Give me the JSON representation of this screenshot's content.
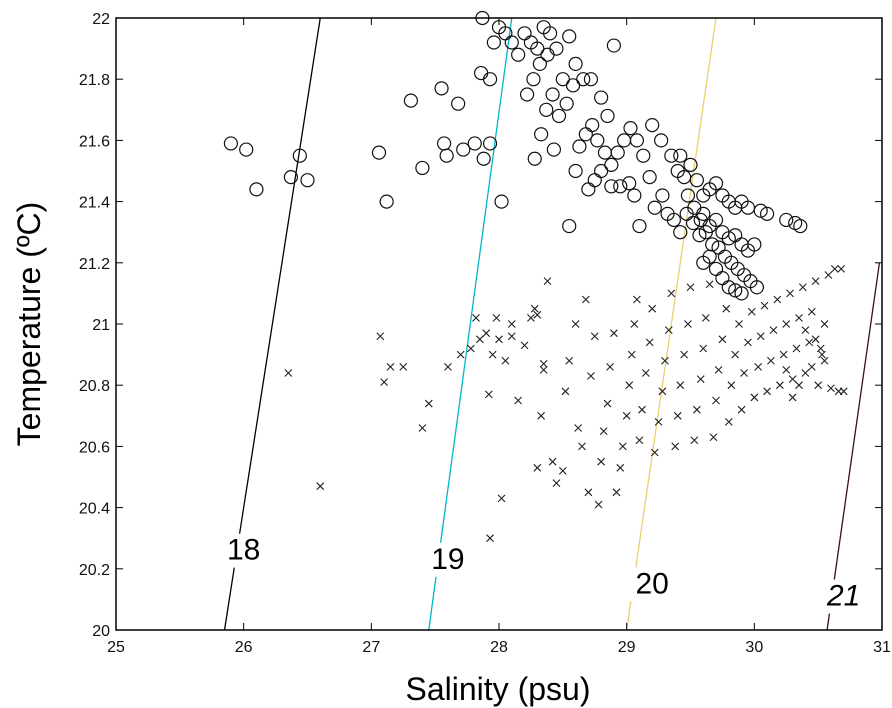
{
  "chart_data": {
    "type": "scatter",
    "xlabel": "Salinity (psu)",
    "ylabel": "Temperature (ºC)",
    "xlim": [
      25,
      31
    ],
    "ylim": [
      20,
      22
    ],
    "xticks": [
      25,
      26,
      27,
      28,
      29,
      30,
      31
    ],
    "yticks": [
      20,
      20.2,
      20.4,
      20.6,
      20.8,
      21,
      21.2,
      21.4,
      21.6,
      21.8,
      22
    ],
    "ytick_labels": [
      "20",
      "20.2",
      "20.4",
      "20.6",
      "20.8",
      "21",
      "21.2",
      "21.4",
      "21.6",
      "21.8",
      "22"
    ],
    "grid": false,
    "isopycnals": [
      {
        "label": "18",
        "color": "#000000",
        "points": [
          [
            25.85,
            20
          ],
          [
            26.6,
            22
          ]
        ],
        "label_at": [
          26.0,
          20.23
        ]
      },
      {
        "label": "19",
        "color": "#00b8c8",
        "points": [
          [
            27.45,
            20
          ],
          [
            28.1,
            22
          ]
        ],
        "label_at": [
          27.6,
          20.2
        ]
      },
      {
        "label": "20",
        "color": "#e8d070",
        "points": [
          [
            29.0,
            20
          ],
          [
            29.7,
            22
          ]
        ],
        "label_at": [
          29.2,
          20.12
        ]
      },
      {
        "label": "21",
        "color": "#3a1020",
        "points": [
          [
            30.57,
            20
          ],
          [
            30.98,
            21.2
          ]
        ],
        "label_at": [
          30.7,
          20.08
        ]
      }
    ],
    "series": [
      {
        "marker": "circle",
        "points": [
          [
            25.9,
            21.59
          ],
          [
            26.02,
            21.57
          ],
          [
            26.1,
            21.44
          ],
          [
            26.37,
            21.48
          ],
          [
            26.44,
            21.55
          ],
          [
            26.5,
            21.47
          ],
          [
            27.06,
            21.56
          ],
          [
            27.12,
            21.4
          ],
          [
            27.31,
            21.73
          ],
          [
            27.4,
            21.51
          ],
          [
            27.55,
            21.77
          ],
          [
            27.57,
            21.59
          ],
          [
            27.59,
            21.55
          ],
          [
            27.68,
            21.72
          ],
          [
            27.72,
            21.57
          ],
          [
            27.81,
            21.59
          ],
          [
            27.86,
            21.82
          ],
          [
            27.88,
            21.54
          ],
          [
            27.93,
            21.59
          ],
          [
            27.93,
            21.8
          ],
          [
            27.87,
            22.0
          ],
          [
            28.0,
            21.97
          ],
          [
            28.05,
            21.95
          ],
          [
            28.02,
            21.4
          ],
          [
            27.96,
            21.92
          ],
          [
            28.1,
            21.92
          ],
          [
            28.15,
            21.88
          ],
          [
            28.2,
            21.95
          ],
          [
            28.25,
            21.92
          ],
          [
            28.3,
            21.9
          ],
          [
            28.35,
            21.97
          ],
          [
            28.4,
            21.95
          ],
          [
            28.22,
            21.75
          ],
          [
            28.27,
            21.8
          ],
          [
            28.32,
            21.85
          ],
          [
            28.38,
            21.88
          ],
          [
            28.45,
            21.9
          ],
          [
            28.55,
            21.94
          ],
          [
            28.6,
            21.85
          ],
          [
            28.5,
            21.8
          ],
          [
            28.42,
            21.75
          ],
          [
            28.37,
            21.7
          ],
          [
            28.28,
            21.54
          ],
          [
            28.33,
            21.62
          ],
          [
            28.43,
            21.57
          ],
          [
            28.47,
            21.68
          ],
          [
            28.53,
            21.72
          ],
          [
            28.58,
            21.78
          ],
          [
            28.66,
            21.8
          ],
          [
            28.72,
            21.8
          ],
          [
            28.8,
            21.74
          ],
          [
            28.85,
            21.68
          ],
          [
            28.9,
            21.91
          ],
          [
            28.55,
            21.32
          ],
          [
            28.6,
            21.5
          ],
          [
            28.63,
            21.58
          ],
          [
            28.68,
            21.62
          ],
          [
            28.73,
            21.65
          ],
          [
            28.77,
            21.6
          ],
          [
            28.83,
            21.56
          ],
          [
            28.88,
            21.52
          ],
          [
            28.93,
            21.56
          ],
          [
            28.98,
            21.6
          ],
          [
            29.03,
            21.64
          ],
          [
            29.08,
            21.6
          ],
          [
            29.13,
            21.55
          ],
          [
            29.2,
            21.65
          ],
          [
            29.27,
            21.6
          ],
          [
            29.35,
            21.55
          ],
          [
            29.4,
            21.5
          ],
          [
            29.45,
            21.48
          ],
          [
            29.5,
            21.52
          ],
          [
            29.55,
            21.47
          ],
          [
            29.6,
            21.42
          ],
          [
            29.65,
            21.44
          ],
          [
            29.7,
            21.46
          ],
          [
            29.75,
            21.42
          ],
          [
            29.8,
            21.4
          ],
          [
            29.85,
            21.38
          ],
          [
            29.9,
            21.4
          ],
          [
            29.95,
            21.38
          ],
          [
            30.05,
            21.37
          ],
          [
            30.1,
            21.36
          ],
          [
            30.25,
            21.34
          ],
          [
            30.32,
            21.33
          ],
          [
            30.36,
            21.32
          ],
          [
            28.7,
            21.44
          ],
          [
            28.75,
            21.47
          ],
          [
            28.8,
            21.5
          ],
          [
            28.88,
            21.45
          ],
          [
            28.95,
            21.45
          ],
          [
            29.02,
            21.46
          ],
          [
            29.06,
            21.42
          ],
          [
            29.1,
            21.32
          ],
          [
            29.18,
            21.48
          ],
          [
            29.22,
            21.38
          ],
          [
            29.28,
            21.42
          ],
          [
            29.32,
            21.36
          ],
          [
            29.37,
            21.34
          ],
          [
            29.42,
            21.3
          ],
          [
            29.47,
            21.36
          ],
          [
            29.52,
            21.33
          ],
          [
            29.57,
            21.29
          ],
          [
            29.62,
            21.3
          ],
          [
            29.67,
            21.26
          ],
          [
            29.72,
            21.25
          ],
          [
            29.77,
            21.22
          ],
          [
            29.82,
            21.2
          ],
          [
            29.87,
            21.18
          ],
          [
            29.92,
            21.16
          ],
          [
            29.97,
            21.14
          ],
          [
            30.02,
            21.12
          ],
          [
            29.6,
            21.36
          ],
          [
            29.65,
            21.32
          ],
          [
            29.7,
            21.34
          ],
          [
            29.75,
            21.3
          ],
          [
            29.8,
            21.28
          ],
          [
            29.85,
            21.29
          ],
          [
            29.9,
            21.26
          ],
          [
            29.95,
            21.24
          ],
          [
            30.0,
            21.26
          ],
          [
            29.6,
            21.2
          ],
          [
            29.65,
            21.22
          ],
          [
            29.7,
            21.18
          ],
          [
            29.75,
            21.15
          ],
          [
            29.8,
            21.12
          ],
          [
            29.85,
            21.11
          ],
          [
            29.9,
            21.1
          ],
          [
            29.42,
            21.55
          ],
          [
            29.48,
            21.42
          ],
          [
            29.53,
            21.38
          ],
          [
            29.58,
            21.34
          ]
        ]
      },
      {
        "marker": "cross",
        "points": [
          [
            26.35,
            20.84
          ],
          [
            26.6,
            20.47
          ],
          [
            27.07,
            20.96
          ],
          [
            27.1,
            20.81
          ],
          [
            27.15,
            20.86
          ],
          [
            27.25,
            20.86
          ],
          [
            27.4,
            20.66
          ],
          [
            27.45,
            20.74
          ],
          [
            27.6,
            20.86
          ],
          [
            27.7,
            20.9
          ],
          [
            27.78,
            20.92
          ],
          [
            27.82,
            21.02
          ],
          [
            27.85,
            20.95
          ],
          [
            27.9,
            20.97
          ],
          [
            27.92,
            20.77
          ],
          [
            27.95,
            20.9
          ],
          [
            27.98,
            21.02
          ],
          [
            28.0,
            20.95
          ],
          [
            28.05,
            20.88
          ],
          [
            28.1,
            20.96
          ],
          [
            27.93,
            20.3
          ],
          [
            28.02,
            20.43
          ],
          [
            28.1,
            21.0
          ],
          [
            28.15,
            20.75
          ],
          [
            28.2,
            20.93
          ],
          [
            28.25,
            21.02
          ],
          [
            28.28,
            21.05
          ],
          [
            28.3,
            21.03
          ],
          [
            28.35,
            20.87
          ],
          [
            28.3,
            20.53
          ],
          [
            28.33,
            20.7
          ],
          [
            28.35,
            20.85
          ],
          [
            28.38,
            21.14
          ],
          [
            28.42,
            20.55
          ],
          [
            28.45,
            20.48
          ],
          [
            28.5,
            20.52
          ],
          [
            28.52,
            20.78
          ],
          [
            28.55,
            20.88
          ],
          [
            28.6,
            21.0
          ],
          [
            28.62,
            20.66
          ],
          [
            28.65,
            20.6
          ],
          [
            28.68,
            21.08
          ],
          [
            28.7,
            20.45
          ],
          [
            28.72,
            20.83
          ],
          [
            28.75,
            20.96
          ],
          [
            28.78,
            20.41
          ],
          [
            28.8,
            20.55
          ],
          [
            28.82,
            20.65
          ],
          [
            28.85,
            20.74
          ],
          [
            28.87,
            20.86
          ],
          [
            28.9,
            20.97
          ],
          [
            28.92,
            20.45
          ],
          [
            28.95,
            20.53
          ],
          [
            28.97,
            20.6
          ],
          [
            29.0,
            20.7
          ],
          [
            29.02,
            20.8
          ],
          [
            29.04,
            20.9
          ],
          [
            29.06,
            21.0
          ],
          [
            29.08,
            21.08
          ],
          [
            29.1,
            20.62
          ],
          [
            29.12,
            20.72
          ],
          [
            29.15,
            20.84
          ],
          [
            29.18,
            20.94
          ],
          [
            29.2,
            21.05
          ],
          [
            29.22,
            20.58
          ],
          [
            29.25,
            20.68
          ],
          [
            29.28,
            20.78
          ],
          [
            29.3,
            20.88
          ],
          [
            29.33,
            20.98
          ],
          [
            29.35,
            21.1
          ],
          [
            29.38,
            20.6
          ],
          [
            29.4,
            20.7
          ],
          [
            29.42,
            20.8
          ],
          [
            29.45,
            20.9
          ],
          [
            29.48,
            21.0
          ],
          [
            29.5,
            21.12
          ],
          [
            29.53,
            20.62
          ],
          [
            29.55,
            20.72
          ],
          [
            29.58,
            20.82
          ],
          [
            29.6,
            20.92
          ],
          [
            29.62,
            21.02
          ],
          [
            29.65,
            21.13
          ],
          [
            29.68,
            20.63
          ],
          [
            29.7,
            20.75
          ],
          [
            29.72,
            20.85
          ],
          [
            29.75,
            20.95
          ],
          [
            29.78,
            21.05
          ],
          [
            29.8,
            20.68
          ],
          [
            29.82,
            20.8
          ],
          [
            29.85,
            20.9
          ],
          [
            29.88,
            21.0
          ],
          [
            29.9,
            20.72
          ],
          [
            29.92,
            20.84
          ],
          [
            29.95,
            20.94
          ],
          [
            29.98,
            21.04
          ],
          [
            30.0,
            20.76
          ],
          [
            30.03,
            20.86
          ],
          [
            30.05,
            20.96
          ],
          [
            30.08,
            21.06
          ],
          [
            30.1,
            20.78
          ],
          [
            30.13,
            20.88
          ],
          [
            30.15,
            20.98
          ],
          [
            30.18,
            21.08
          ],
          [
            30.2,
            20.8
          ],
          [
            30.23,
            20.9
          ],
          [
            30.25,
            21.0
          ],
          [
            30.28,
            21.1
          ],
          [
            30.3,
            20.82
          ],
          [
            30.33,
            20.92
          ],
          [
            30.35,
            21.02
          ],
          [
            30.38,
            21.12
          ],
          [
            30.4,
            20.84
          ],
          [
            30.43,
            20.94
          ],
          [
            30.45,
            21.04
          ],
          [
            30.48,
            21.14
          ],
          [
            30.5,
            20.8
          ],
          [
            30.53,
            20.9
          ],
          [
            30.55,
            21.0
          ],
          [
            30.58,
            21.16
          ],
          [
            30.6,
            20.79
          ],
          [
            30.63,
            21.18
          ],
          [
            30.66,
            20.78
          ],
          [
            30.68,
            21.18
          ],
          [
            30.7,
            20.78
          ],
          [
            30.45,
            20.86
          ],
          [
            30.48,
            20.95
          ],
          [
            30.52,
            20.92
          ],
          [
            30.55,
            20.88
          ],
          [
            30.4,
            20.98
          ],
          [
            30.35,
            20.8
          ],
          [
            30.3,
            20.76
          ],
          [
            30.25,
            20.85
          ]
        ]
      }
    ]
  }
}
